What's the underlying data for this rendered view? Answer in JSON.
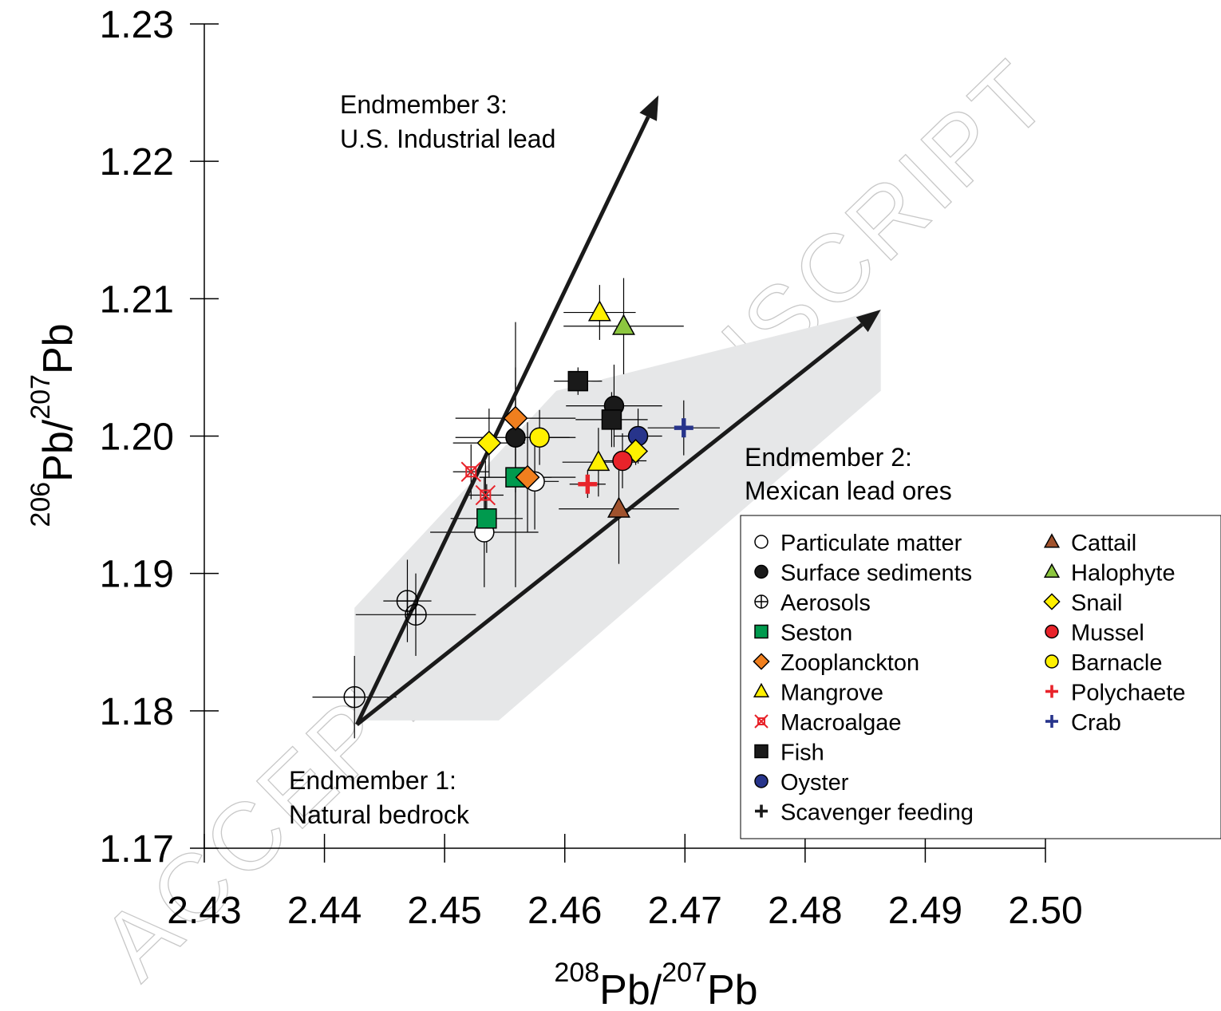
{
  "chart_data": {
    "type": "scatter",
    "xlabel": {
      "sup1": "208",
      "base1": "Pb/",
      "sup2": "207",
      "base2": "Pb"
    },
    "ylabel": {
      "sup1": "206",
      "base1": "Pb/",
      "sup2": "207",
      "base2": "Pb"
    },
    "xlim": [
      2.43,
      2.5
    ],
    "ylim": [
      1.17,
      1.23
    ],
    "xticks": [
      "2.43",
      "2.44",
      "2.45",
      "2.46",
      "2.47",
      "2.48",
      "2.49",
      "2.50"
    ],
    "yticks": [
      "1.17",
      "1.18",
      "1.19",
      "1.20",
      "1.21",
      "1.22",
      "1.23"
    ],
    "grid": false,
    "legend_position": "lower-right",
    "watermark": "ACCEPTED MANUSCRIPT",
    "annotations": {
      "em3": [
        "Endmember 3:",
        "U.S. Industrial lead"
      ],
      "em2": [
        "Endmember 2:",
        "Mexican lead ores"
      ],
      "em1": [
        "Endmember 1:",
        "Natural bedrock"
      ]
    },
    "arrows": [
      {
        "from": [
          2.4427,
          1.179
        ],
        "to": [
          2.4678,
          1.2248
        ]
      },
      {
        "from": [
          2.4427,
          1.179
        ],
        "to": [
          2.4863,
          1.2092
        ]
      }
    ],
    "shaded_region": [
      [
        2.4425,
        1.1875
      ],
      [
        2.4593,
        1.2033
      ],
      [
        2.4863,
        1.2092
      ],
      [
        2.4863,
        1.2033
      ],
      [
        2.4545,
        1.1793
      ],
      [
        2.4425,
        1.1793
      ]
    ],
    "legend": [
      {
        "name": "Particulate matter",
        "marker": "circle",
        "fill": "#ffffff"
      },
      {
        "name": "Surface sediments",
        "marker": "circle",
        "fill": "#1a1a1a"
      },
      {
        "name": "Aerosols",
        "marker": "circle-plus",
        "fill": "none"
      },
      {
        "name": "Seston",
        "marker": "square",
        "fill": "#009a4e"
      },
      {
        "name": "Zooplanckton",
        "marker": "diamond",
        "fill": "#f07f1e"
      },
      {
        "name": "Mangrove",
        "marker": "triangle",
        "fill": "#fff000"
      },
      {
        "name": "Macroalgae",
        "marker": "star-x",
        "fill": "#e8232a"
      },
      {
        "name": "Fish",
        "marker": "square",
        "fill": "#1a1a1a"
      },
      {
        "name": "Oyster",
        "marker": "circle",
        "fill": "#27348b"
      },
      {
        "name": "Scavenger feeding",
        "marker": "plus",
        "fill": "#1a1a1a"
      },
      {
        "name": "Cattail",
        "marker": "triangle",
        "fill": "#a0522d"
      },
      {
        "name": "Halophyte",
        "marker": "triangle",
        "fill": "#8cc63f"
      },
      {
        "name": "Snail",
        "marker": "diamond",
        "fill": "#fff000"
      },
      {
        "name": "Mussel",
        "marker": "circle",
        "fill": "#e8232a"
      },
      {
        "name": "Barnacle",
        "marker": "circle",
        "fill": "#fff000"
      },
      {
        "name": "Polychaete",
        "marker": "plus",
        "fill": "#e8232a"
      },
      {
        "name": "Crab",
        "marker": "plus",
        "fill": "#27348b"
      }
    ],
    "series": [
      {
        "name": "Particulate matter",
        "points": [
          {
            "x": 2.4533,
            "y": 1.193,
            "xerr": 0.0045,
            "yerr": 0.004
          },
          {
            "x": 2.4575,
            "y": 1.1967,
            "xerr": 0.002,
            "yerr": 0.0035
          }
        ]
      },
      {
        "name": "Surface sediments",
        "points": [
          {
            "x": 2.4559,
            "y": 1.1999,
            "xerr": 0.005,
            "yerr": 0.004
          },
          {
            "x": 2.4641,
            "y": 1.2022,
            "xerr": 0.004,
            "yerr": 0.003
          }
        ]
      },
      {
        "name": "Aerosols",
        "points": [
          {
            "x": 2.4425,
            "y": 1.181,
            "xerr": 0.0035,
            "yerr": 0.003
          },
          {
            "x": 2.4469,
            "y": 1.188,
            "xerr": 0.002,
            "yerr": 0.003
          },
          {
            "x": 2.4476,
            "y": 1.187,
            "xerr": 0.005,
            "yerr": 0.003
          }
        ]
      },
      {
        "name": "Seston",
        "points": [
          {
            "x": 2.4535,
            "y": 1.194,
            "xerr": 0.003,
            "yerr": 0.0025
          },
          {
            "x": 2.4559,
            "y": 1.197,
            "xerr": 0.003,
            "yerr": 0.008
          }
        ]
      },
      {
        "name": "Zooplanckton",
        "points": [
          {
            "x": 2.4559,
            "y": 1.2013,
            "xerr": 0.005,
            "yerr": 0.007
          },
          {
            "x": 2.4569,
            "y": 1.197,
            "xerr": 0.004,
            "yerr": 0.004
          }
        ]
      },
      {
        "name": "Mangrove",
        "points": [
          {
            "x": 2.4629,
            "y": 1.209,
            "xerr": 0.003,
            "yerr": 0.002
          },
          {
            "x": 2.4628,
            "y": 1.1981,
            "xerr": 0.003,
            "yerr": 0.0025
          }
        ]
      },
      {
        "name": "Macroalgae",
        "points": [
          {
            "x": 2.4522,
            "y": 1.1974,
            "xerr": 0.0015,
            "yerr": 0.002
          },
          {
            "x": 2.4534,
            "y": 1.1957,
            "xerr": 0.0015,
            "yerr": 0.0025
          }
        ]
      },
      {
        "name": "Fish",
        "points": [
          {
            "x": 2.4611,
            "y": 1.204,
            "xerr": 0.002,
            "yerr": 0.001
          },
          {
            "x": 2.4639,
            "y": 1.2012,
            "xerr": 0.003,
            "yerr": 0.002
          }
        ]
      },
      {
        "name": "Oyster",
        "points": [
          {
            "x": 2.4661,
            "y": 1.2,
            "xerr": 0.002,
            "yerr": 0.002
          }
        ]
      },
      {
        "name": "Cattail",
        "points": [
          {
            "x": 2.4645,
            "y": 1.1947,
            "xerr": 0.005,
            "yerr": 0.004
          }
        ]
      },
      {
        "name": "Halophyte",
        "points": [
          {
            "x": 2.4649,
            "y": 1.208,
            "xerr": 0.005,
            "yerr": 0.0035
          }
        ]
      },
      {
        "name": "Snail",
        "points": [
          {
            "x": 2.4537,
            "y": 1.1995,
            "xerr": 0.003,
            "yerr": 0.0025
          },
          {
            "x": 2.4659,
            "y": 1.1989,
            "xerr": 0.001,
            "yerr": 0.001
          }
        ]
      },
      {
        "name": "Mussel",
        "points": [
          {
            "x": 2.4648,
            "y": 1.1982,
            "xerr": 0.002,
            "yerr": 0.002
          }
        ]
      },
      {
        "name": "Barnacle",
        "points": [
          {
            "x": 2.4579,
            "y": 1.1999,
            "xerr": 0.0025,
            "yerr": 0.002
          }
        ]
      },
      {
        "name": "Polychaete",
        "points": [
          {
            "x": 2.4619,
            "y": 1.1965,
            "xerr": 0.0015,
            "yerr": 0.001
          }
        ]
      },
      {
        "name": "Crab",
        "points": [
          {
            "x": 2.4699,
            "y": 1.2006,
            "xerr": 0.003,
            "yerr": 0.002
          }
        ]
      }
    ]
  }
}
